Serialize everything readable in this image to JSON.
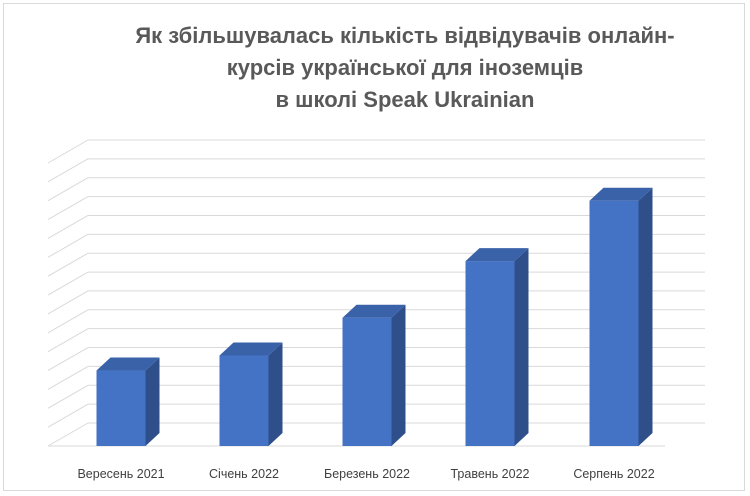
{
  "chart_data": {
    "type": "bar",
    "title_lines": [
      "Як збільшувалась кількість відвідувачів онлайн-",
      "курсів української для іноземців",
      "в школі Speak Ukrainian"
    ],
    "categories": [
      "Вересень 2021",
      "Січень 2022",
      "Березень 2022",
      "Травень 2022",
      "Серпень 2022"
    ],
    "values": [
      2,
      2.4,
      3.4,
      4.9,
      6.5
    ],
    "ylim": [
      0,
      7.5
    ],
    "grid": true,
    "legend": "none",
    "style": "3d-column",
    "colors": {
      "bar_front": "#4472C4",
      "bar_side": "#2F4F8A",
      "bar_top": "#3A62A8",
      "grid": "#d9d9d9",
      "tick_label": "#404040",
      "title": "#595959"
    }
  }
}
